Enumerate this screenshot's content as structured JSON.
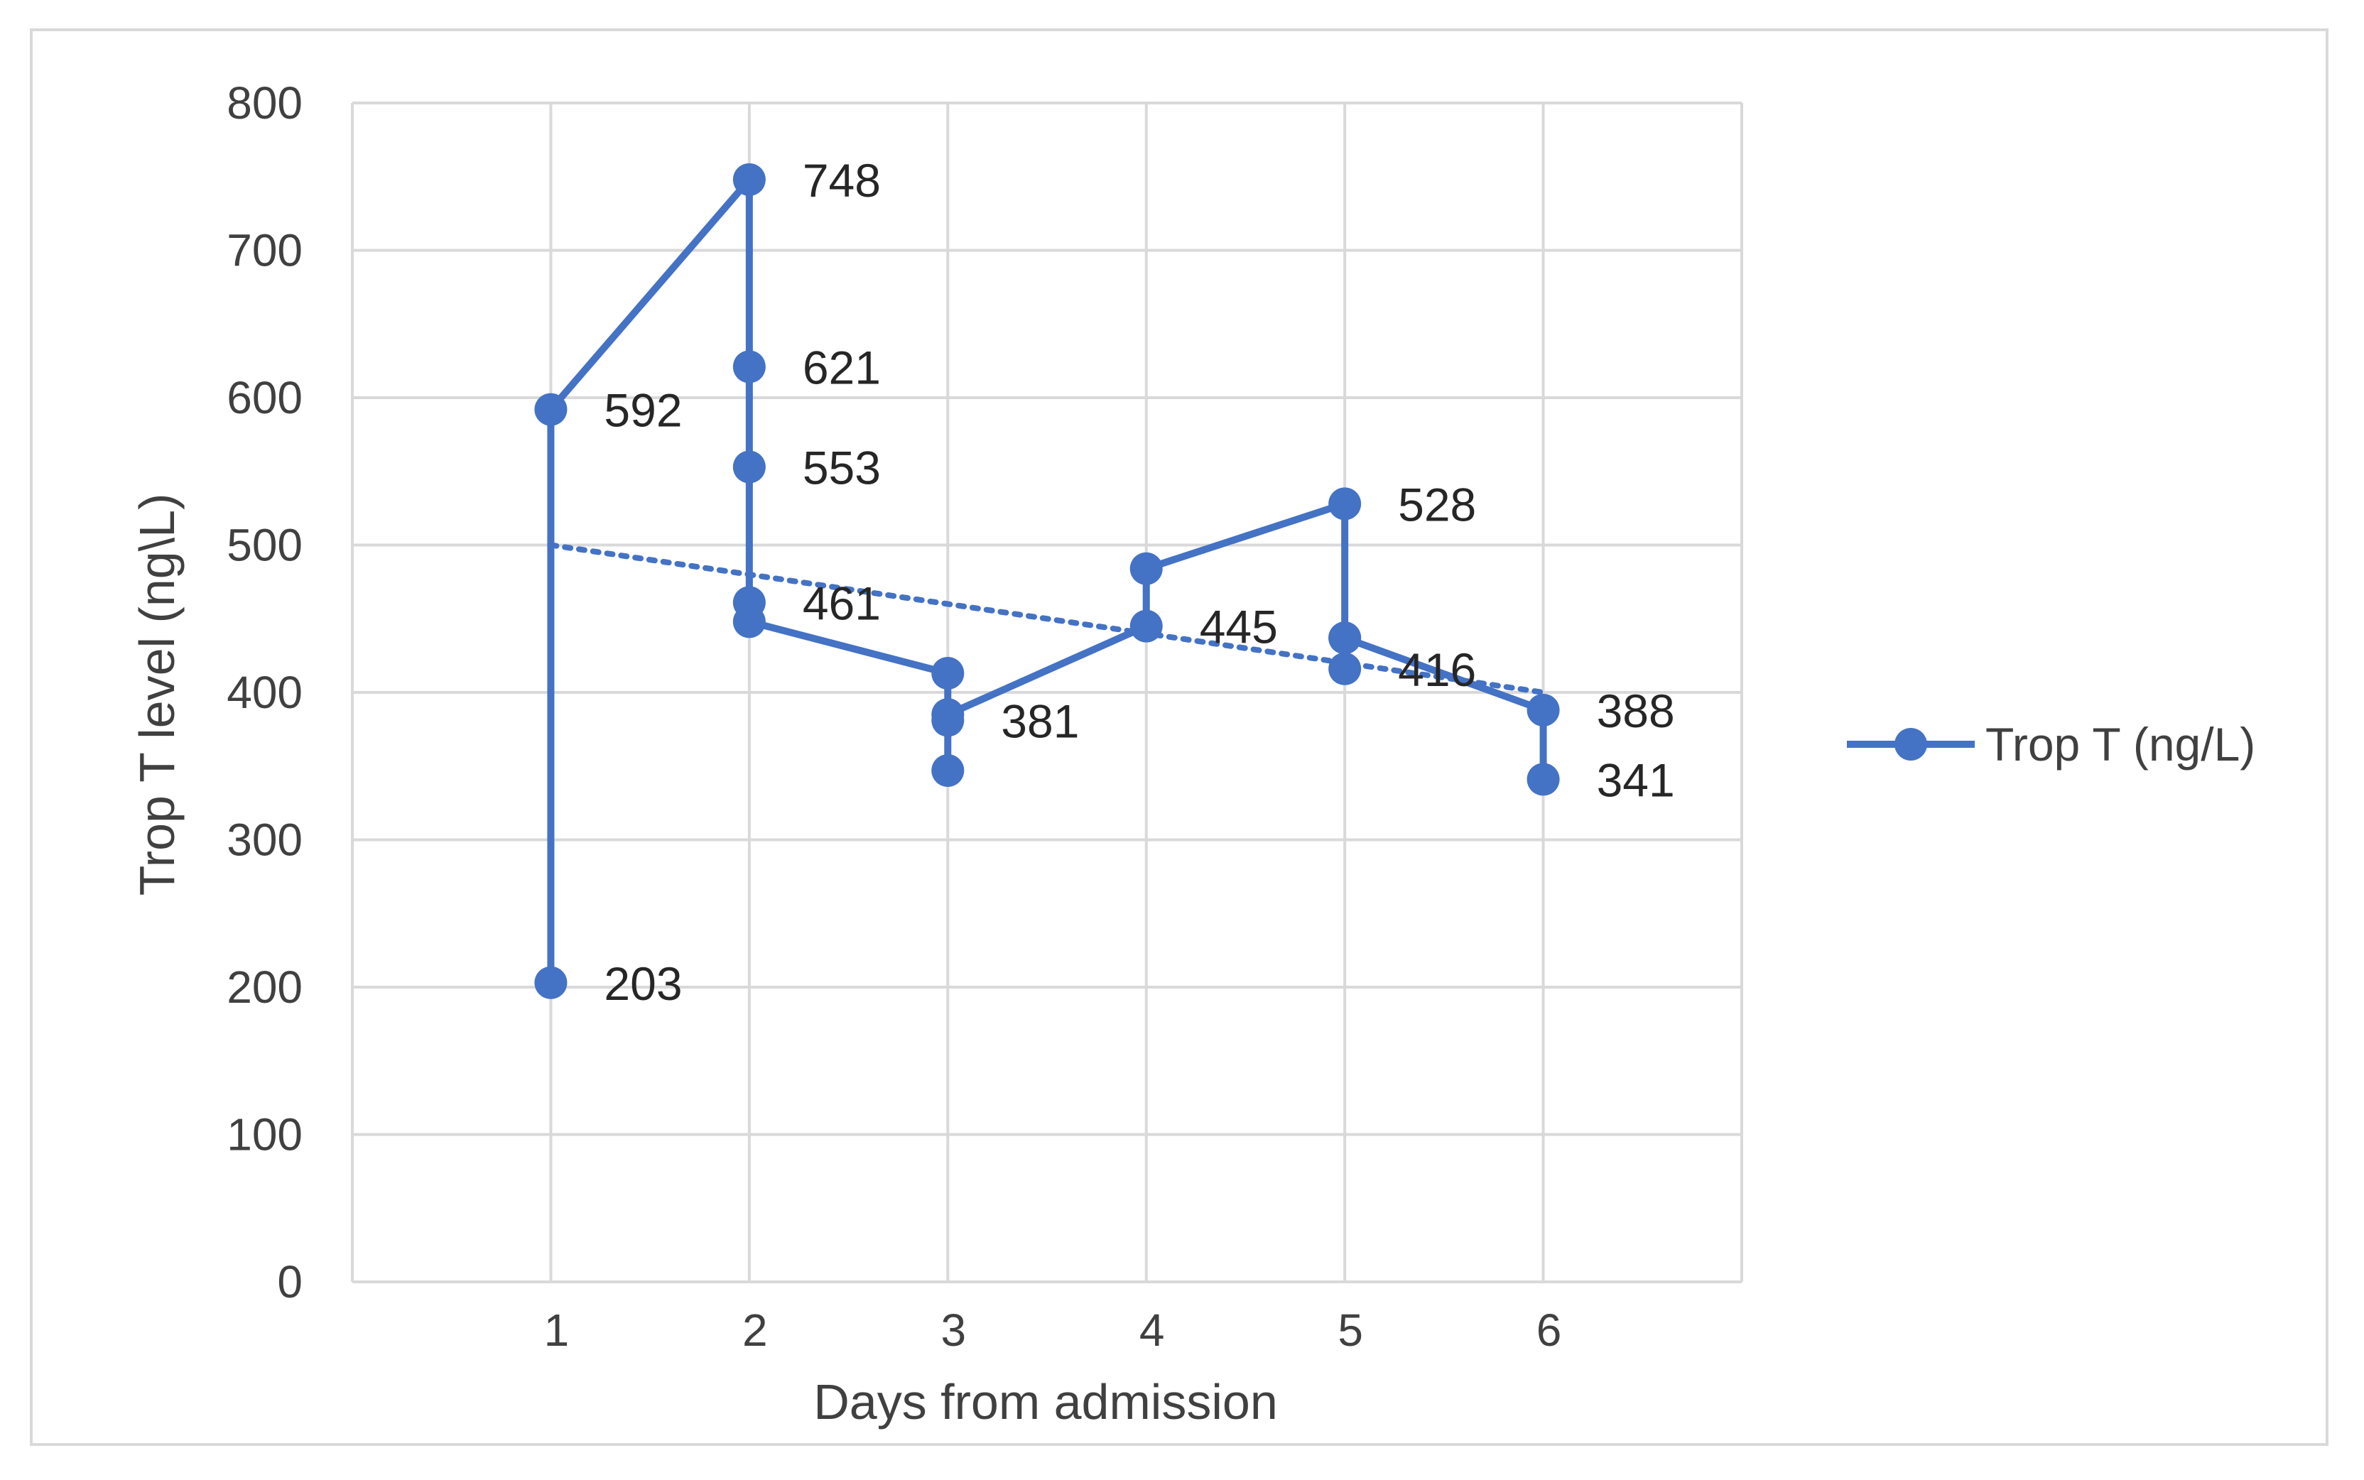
{
  "chart_data": {
    "type": "line",
    "xlabel": "Days from admission",
    "ylabel": "Trop T level (ng\\L)",
    "ylim": [
      0,
      800
    ],
    "yticks": [
      0,
      100,
      200,
      300,
      400,
      500,
      600,
      700,
      800
    ],
    "xticks": [
      1,
      2,
      3,
      4,
      5,
      6
    ],
    "xlim": [
      0,
      7
    ],
    "grid": true,
    "legend_position": "right",
    "series": [
      {
        "name": "Trop T (ng/L)",
        "color": "#4472c4",
        "marker": "circle",
        "points": [
          {
            "x": 1,
            "y": 203,
            "label": "203"
          },
          {
            "x": 1,
            "y": 592,
            "label": "592"
          },
          {
            "x": 2,
            "y": 748,
            "label": "748"
          },
          {
            "x": 2,
            "y": 621,
            "label": "621"
          },
          {
            "x": 2,
            "y": 553,
            "label": "553"
          },
          {
            "x": 2,
            "y": 461,
            "label": "461"
          },
          {
            "x": 2,
            "y": 448,
            "label": ""
          },
          {
            "x": 3,
            "y": 413,
            "label": ""
          },
          {
            "x": 3,
            "y": 381,
            "label": "381"
          },
          {
            "x": 3,
            "y": 347,
            "label": ""
          },
          {
            "x": 3,
            "y": 385,
            "label": ""
          },
          {
            "x": 4,
            "y": 445,
            "label": "445"
          },
          {
            "x": 4,
            "y": 484,
            "label": ""
          },
          {
            "x": 5,
            "y": 528,
            "label": "528"
          },
          {
            "x": 5,
            "y": 437,
            "label": ""
          },
          {
            "x": 5,
            "y": 416,
            "label": "416"
          },
          {
            "x": 5,
            "y": 437,
            "label": ""
          },
          {
            "x": 6,
            "y": 388,
            "label": "388"
          },
          {
            "x": 6,
            "y": 341,
            "label": "341"
          }
        ]
      }
    ],
    "trendline": {
      "style": "dotted",
      "color": "#4472c4",
      "x": [
        1,
        6
      ],
      "y": [
        500,
        400
      ]
    }
  }
}
